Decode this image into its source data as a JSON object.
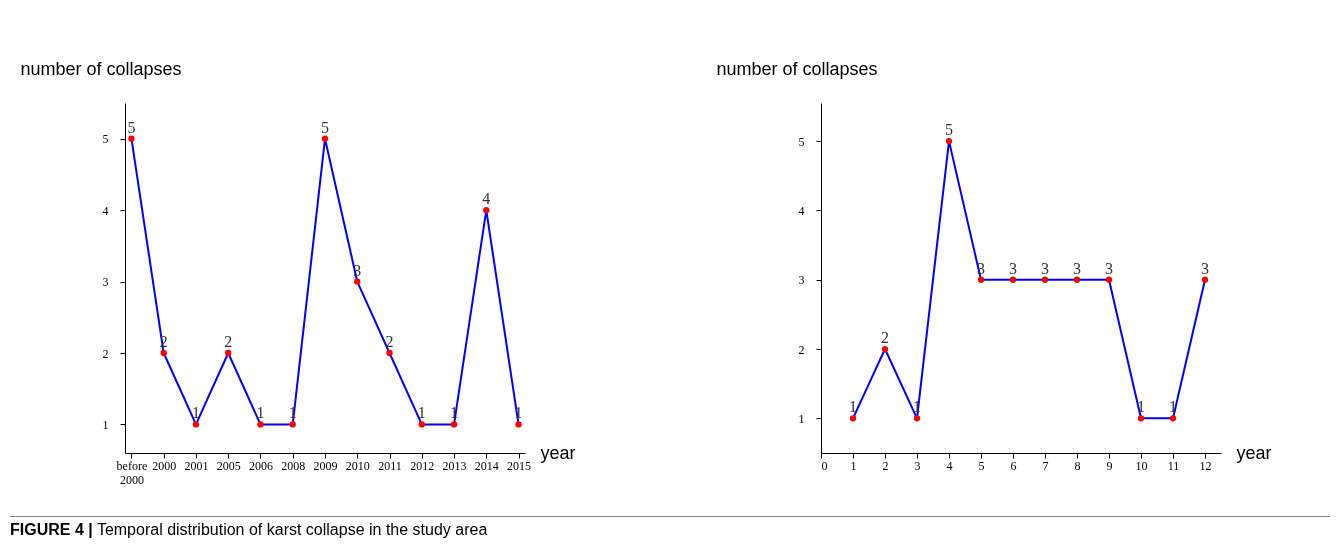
{
  "chart_data": [
    {
      "type": "line",
      "ylabel": "number of collapses",
      "xlabel": "year",
      "categories": [
        "before 2000",
        "2000",
        "2001",
        "2005",
        "2006",
        "2008",
        "2009",
        "2010",
        "2011",
        "2012",
        "2013",
        "2014",
        "2015"
      ],
      "ylim": [
        0.6,
        5.5
      ],
      "yticks": [
        1,
        2,
        3,
        4,
        5
      ],
      "data_labels": true,
      "marker": "circle",
      "series": [
        {
          "color": "#0000ff",
          "colors": [
            "#ff0000",
            "#ff0000",
            "#ff0000",
            "#ff0000",
            "#ff0000",
            "#ff0000",
            "#ff0000",
            "#ff0000",
            "#ff0000",
            "#ff0000",
            "#ff0000",
            "#ff0000",
            "#ff0000"
          ],
          "values": [
            5,
            2,
            1,
            2,
            1,
            1,
            5,
            3,
            2,
            1,
            1,
            4,
            1
          ]
        }
      ],
      "annotations": [
        "FIGURE 4 | Temporal distribution of karst collapse in the study area"
      ]
    },
    {
      "type": "line",
      "ylabel": "number of collapses",
      "xlabel": "year",
      "x": [
        1,
        2,
        3,
        4,
        5,
        6,
        7,
        8,
        9,
        10,
        11,
        12
      ],
      "xlim": [
        0,
        12.5
      ],
      "xticks": [
        0,
        1,
        2,
        3,
        4,
        5,
        6,
        7,
        8,
        9,
        10,
        11,
        12
      ],
      "ylim": [
        0.5,
        5.55
      ],
      "yticks": [
        1,
        2,
        3,
        4,
        5
      ],
      "data_labels": true,
      "marker": "circle",
      "series": [
        {
          "color": "#0000ff",
          "colors": [
            "#ff0000",
            "#ff0000",
            "#ff0000",
            "#ff0000",
            "#ff0000",
            "#ff0000",
            "#ff0000",
            "#ff0000",
            "#ff0000",
            "#ff0000",
            "#ff0000",
            "#ff0000"
          ],
          "values": [
            1,
            2,
            1,
            5,
            3,
            3,
            3,
            3,
            3,
            1,
            1,
            3
          ]
        }
      ]
    }
  ]
}
